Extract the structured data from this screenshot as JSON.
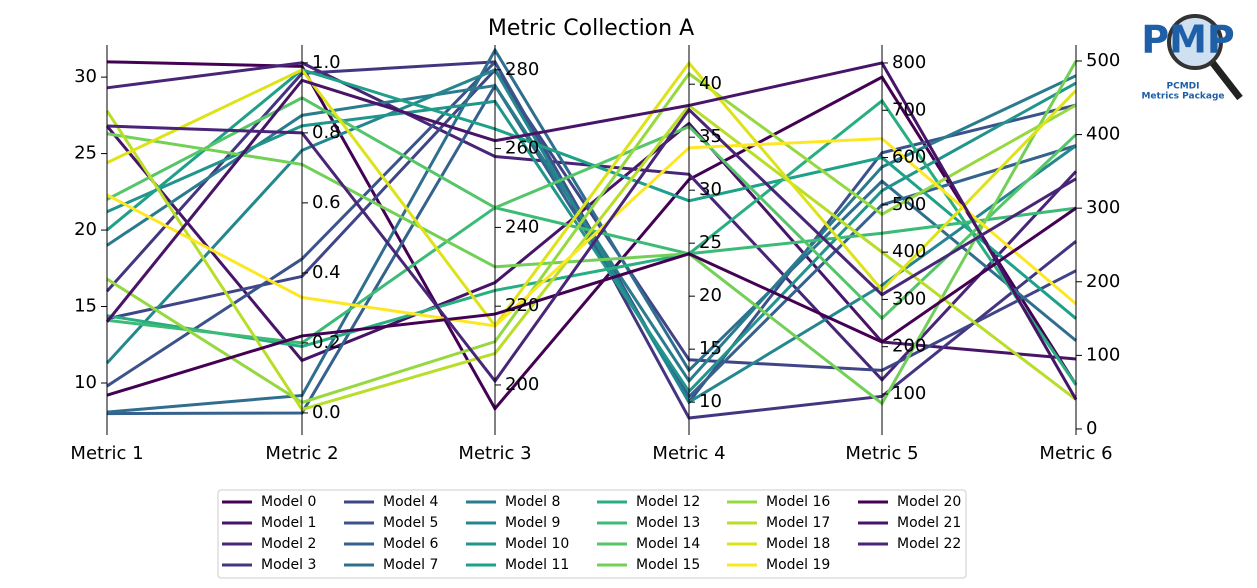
{
  "chart_data": {
    "type": "parallel",
    "title": "Metric Collection A",
    "categories": [
      "Metric 1",
      "Metric 2",
      "Metric 3",
      "Metric 4",
      "Metric 5",
      "Metric 6"
    ],
    "axes": [
      {
        "ylim": [
          6.6,
          32.1
        ],
        "yticks": [
          10,
          15,
          20,
          25,
          30
        ]
      },
      {
        "ylim": [
          -0.063,
          1.051
        ],
        "yticks": [
          {
            "value": 0,
            "label": "0.0"
          },
          0.2,
          0.4,
          0.6,
          0.8,
          {
            "value": 1,
            "label": "1.0"
          }
        ]
      },
      {
        "ylim": [
          187.3,
          286.3
        ],
        "yticks": [
          200,
          220,
          240,
          260,
          280
        ]
      },
      {
        "ylim": [
          6.9,
          43.7
        ],
        "yticks": [
          10,
          15,
          20,
          25,
          30,
          35,
          40
        ]
      },
      {
        "ylim": [
          13.3,
          838
        ],
        "yticks": [
          100,
          200,
          300,
          400,
          500,
          600,
          700,
          800
        ]
      },
      {
        "ylim": [
          -8.2,
          521.7
        ],
        "yticks": [
          0,
          100,
          200,
          300,
          400,
          500
        ]
      }
    ],
    "series": [
      {
        "name": "Model 0",
        "color": "#440154",
        "values": [
          31.0,
          0.99,
          194,
          31,
          770,
          60
        ]
      },
      {
        "name": "Model 1",
        "color": "#481467",
        "values": [
          26.8,
          0.15,
          226,
          36.3,
          210,
          95
        ]
      },
      {
        "name": "Model 2",
        "color": "#482576",
        "values": [
          29.3,
          1.0,
          258,
          31.5,
          130,
          350
        ]
      },
      {
        "name": "Model 3",
        "color": "#453581",
        "values": [
          16.0,
          0.97,
          282,
          8.5,
          95,
          255
        ]
      },
      {
        "name": "Model 4",
        "color": "#404588",
        "values": [
          14.2,
          0.39,
          280,
          14,
          150,
          215
        ]
      },
      {
        "name": "Model 5",
        "color": "#3a538b",
        "values": [
          9.8,
          0.44,
          282,
          10,
          610,
          440
        ]
      },
      {
        "name": "Model 6",
        "color": "#34618d",
        "values": [
          8.0,
          0.0,
          276,
          10.5,
          500,
          385
        ]
      },
      {
        "name": "Model 7",
        "color": "#2f6e8e",
        "values": [
          8.1,
          0.05,
          285,
          13,
          550,
          120
        ]
      },
      {
        "name": "Model 8",
        "color": "#2a7b8e",
        "values": [
          19.0,
          0.85,
          276,
          12,
          580,
          480
        ]
      },
      {
        "name": "Model 9",
        "color": "#25878e",
        "values": [
          11.3,
          0.75,
          280,
          10,
          330,
          385
        ]
      },
      {
        "name": "Model 10",
        "color": "#21948b",
        "values": [
          21.2,
          0.82,
          272,
          11,
          530,
          470
        ]
      },
      {
        "name": "Model 11",
        "color": "#1fa088",
        "values": [
          20.0,
          0.98,
          265,
          29,
          600,
          150
        ]
      },
      {
        "name": "Model 12",
        "color": "#28ae80",
        "values": [
          14.4,
          0.19,
          224,
          24,
          720,
          60
        ]
      },
      {
        "name": "Model 13",
        "color": "#3bbb75",
        "values": [
          14.1,
          0.2,
          245,
          24,
          440,
          300
        ]
      },
      {
        "name": "Model 14",
        "color": "#54c568",
        "values": [
          22.0,
          0.9,
          245,
          36,
          260,
          400
        ]
      },
      {
        "name": "Model 15",
        "color": "#73d056",
        "values": [
          26.3,
          0.71,
          230,
          24,
          80,
          500
        ]
      },
      {
        "name": "Model 16",
        "color": "#95d840",
        "values": [
          16.8,
          0.03,
          211,
          41,
          480,
          440
        ]
      },
      {
        "name": "Model 17",
        "color": "#b8de29",
        "values": [
          27.8,
          0.01,
          208,
          38,
          400,
          40
        ]
      },
      {
        "name": "Model 18",
        "color": "#dde318",
        "values": [
          24.4,
          0.98,
          215,
          42,
          320,
          460
        ]
      },
      {
        "name": "Model 19",
        "color": "#fde725",
        "values": [
          22.3,
          0.33,
          215,
          34,
          640,
          170
        ]
      },
      {
        "name": "Model 20",
        "color": "#440154",
        "values": [
          9.2,
          0.22,
          218,
          24,
          210,
          300
        ]
      },
      {
        "name": "Model 21",
        "color": "#481467",
        "values": [
          14.0,
          0.95,
          262,
          38,
          800,
          40
        ]
      },
      {
        "name": "Model 22",
        "color": "#482576",
        "values": [
          26.8,
          0.8,
          201,
          37.6,
          310,
          340
        ]
      }
    ]
  },
  "logo": {
    "text": "PMP",
    "lines": [
      "PCMDI",
      "Metrics Package"
    ]
  }
}
